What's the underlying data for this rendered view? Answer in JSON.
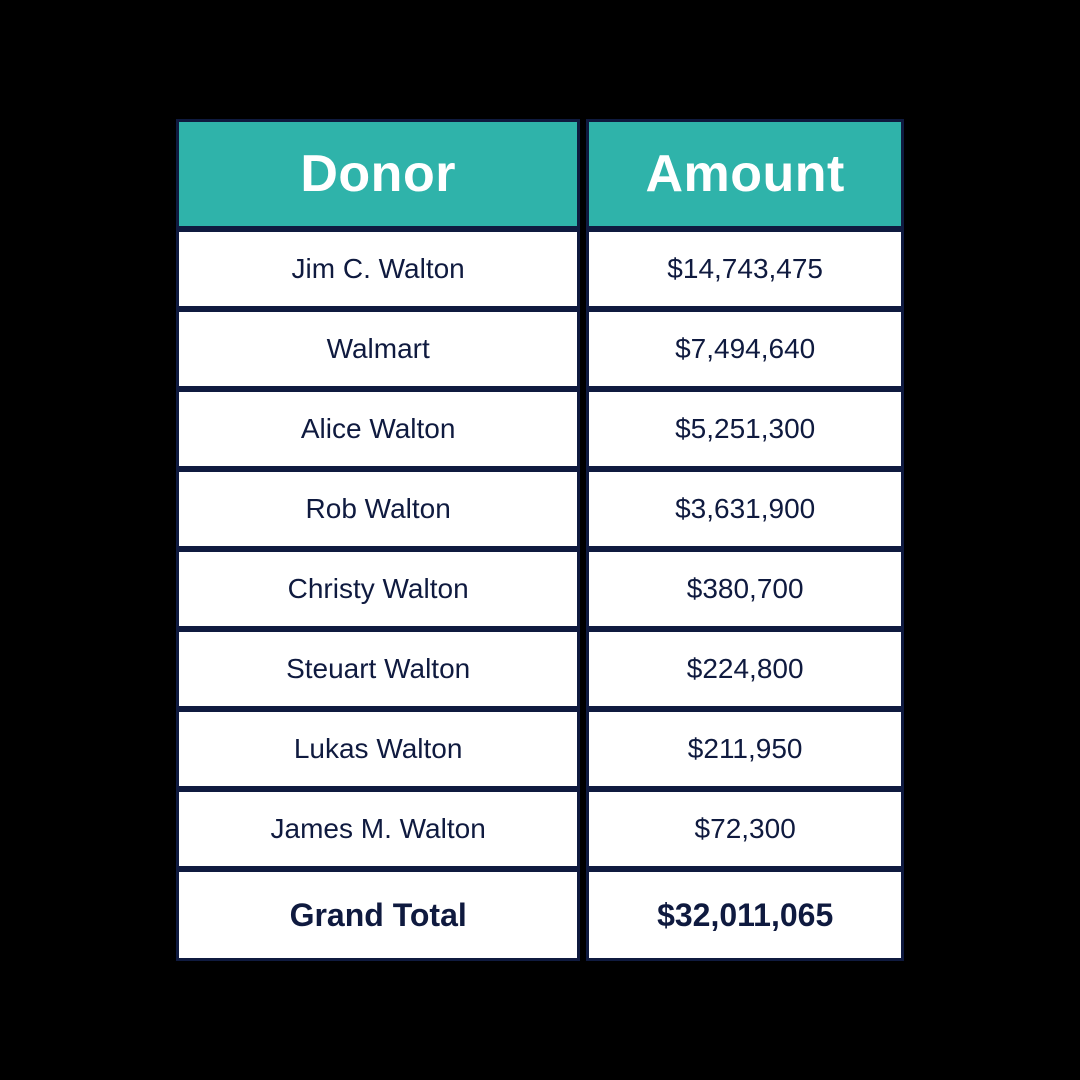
{
  "table": {
    "type": "table",
    "background_color": "#000000",
    "header_bg": "#2fb3aa",
    "header_text_color": "#ffffff",
    "cell_bg": "#ffffff",
    "cell_text_color": "#0f1a3f",
    "border_color": "#0f1a3f",
    "border_width": 3,
    "header_fontsize": 52,
    "header_fontweight": 900,
    "body_fontsize": 28,
    "body_fontweight": 400,
    "total_fontsize": 32,
    "total_fontweight": 900,
    "col_spacing": 6,
    "columns": [
      {
        "label": "Donor",
        "width_pct": 56,
        "align": "center"
      },
      {
        "label": "Amount",
        "width_pct": 44,
        "align": "center"
      }
    ],
    "rows": [
      {
        "donor": "Jim C. Walton",
        "amount": "$14,743,475"
      },
      {
        "donor": "Walmart",
        "amount": "$7,494,640"
      },
      {
        "donor": "Alice Walton",
        "amount": "$5,251,300"
      },
      {
        "donor": "Rob Walton",
        "amount": "$3,631,900"
      },
      {
        "donor": "Christy Walton",
        "amount": "$380,700"
      },
      {
        "donor": "Steuart Walton",
        "amount": "$224,800"
      },
      {
        "donor": "Lukas Walton",
        "amount": "$211,950"
      },
      {
        "donor": "James M. Walton",
        "amount": "$72,300"
      }
    ],
    "total": {
      "label": "Grand Total",
      "amount": "$32,011,065"
    }
  }
}
